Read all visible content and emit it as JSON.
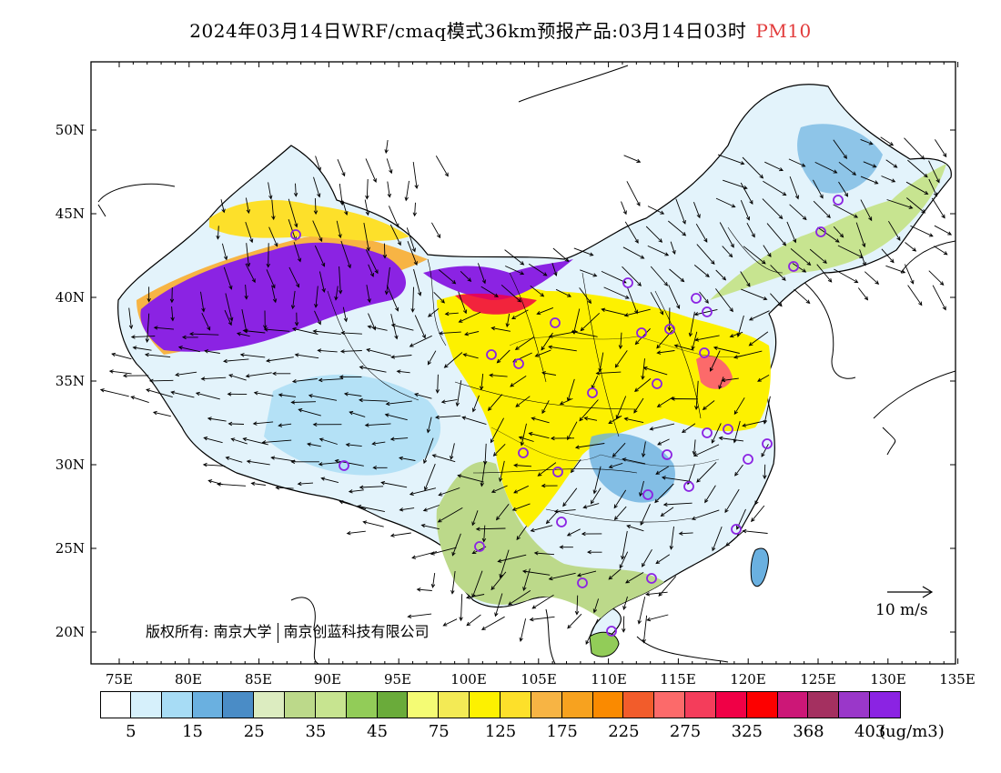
{
  "title": {
    "main": "2024年03月14日WRF/cmaq模式36km预报产品:03月14日03时",
    "variable": "PM10",
    "variable_color": "#e23b3b"
  },
  "lat_labels": [
    "50N",
    "45N",
    "40N",
    "35N",
    "30N",
    "25N",
    "20N"
  ],
  "lon_labels": [
    "75E",
    "80E",
    "85E",
    "90E",
    "95E",
    "100E",
    "105E",
    "110E",
    "115E",
    "120E",
    "125E",
    "130E",
    "135E"
  ],
  "legend": {
    "colors": [
      "#ffffff",
      "#d6f0fb",
      "#a7dcf5",
      "#6ab0e0",
      "#4a8cc6",
      "#dcecc0",
      "#bcd98a",
      "#c7e490",
      "#92cc58",
      "#6aab3a",
      "#f4fb74",
      "#f3ea55",
      "#fdf100",
      "#fde02a",
      "#f7b444",
      "#f7a21f",
      "#fa8a00",
      "#f25c2b",
      "#fc6a6a",
      "#f43d5b",
      "#f00046",
      "#fd0000",
      "#cc1777",
      "#a43060",
      "#9a37c9",
      "#8b23e3"
    ],
    "levels": [
      "5",
      "15",
      "25",
      "35",
      "45",
      "75",
      "125",
      "175",
      "225",
      "275",
      "325",
      "368",
      "403"
    ],
    "unit": "(ug/m3)"
  },
  "wind_reference": {
    "label": "10  m/s"
  },
  "copyright": {
    "prefix": "版权所有:",
    "org1": "南京大学",
    "org2": "南京创蓝科技有限公司"
  }
}
